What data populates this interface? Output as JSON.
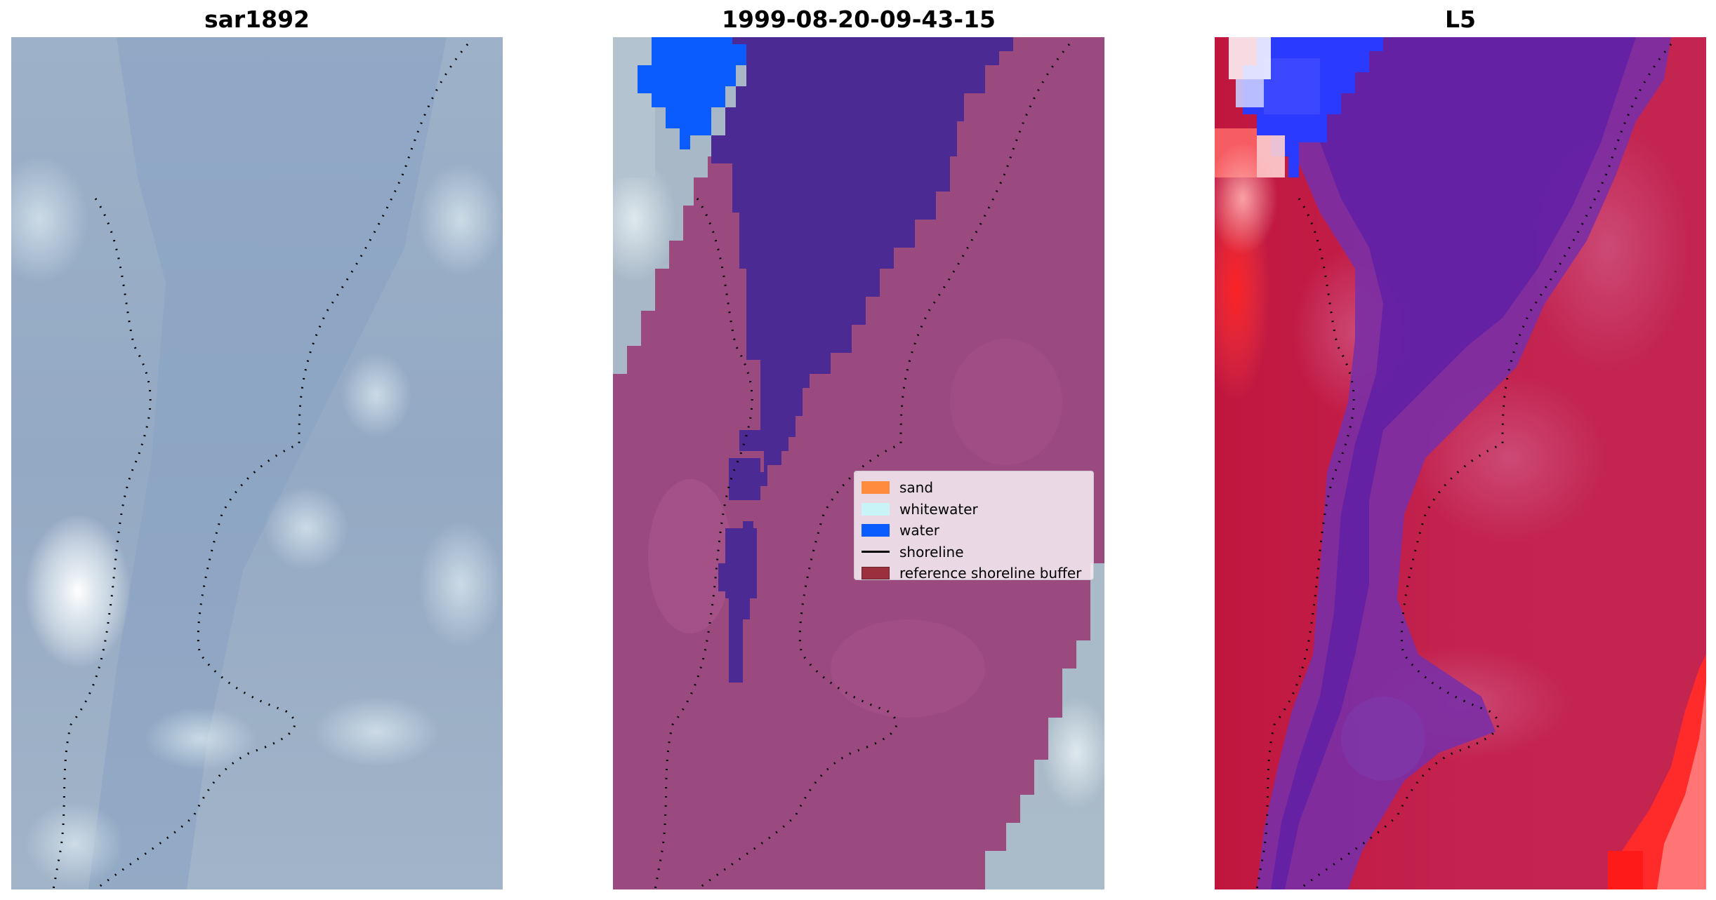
{
  "figure": {
    "panels": [
      {
        "title": "sar1892"
      },
      {
        "title": "1999-08-20-09-43-15"
      },
      {
        "title": "L5"
      }
    ]
  },
  "legend": {
    "items": [
      {
        "label": "sand",
        "color": "#ff8c3c",
        "kind": "patch"
      },
      {
        "label": "whitewater",
        "color": "#c8f4f8",
        "kind": "patch"
      },
      {
        "label": "water",
        "color": "#0a5cff",
        "kind": "patch"
      },
      {
        "label": "shoreline",
        "color": "#000000",
        "kind": "line"
      },
      {
        "label": "reference shoreline buffer",
        "color": "#9c2f3d",
        "kind": "patch"
      }
    ]
  },
  "colors": {
    "rgb_base": "#8fa6c4",
    "classified_buffer": "#9a4a80",
    "classified_water_dark": "#4a2a92",
    "classified_water": "#0a5cff",
    "index_red": "#c8183f",
    "index_purple": "#5e1fa6",
    "index_blue": "#2a3cff"
  }
}
